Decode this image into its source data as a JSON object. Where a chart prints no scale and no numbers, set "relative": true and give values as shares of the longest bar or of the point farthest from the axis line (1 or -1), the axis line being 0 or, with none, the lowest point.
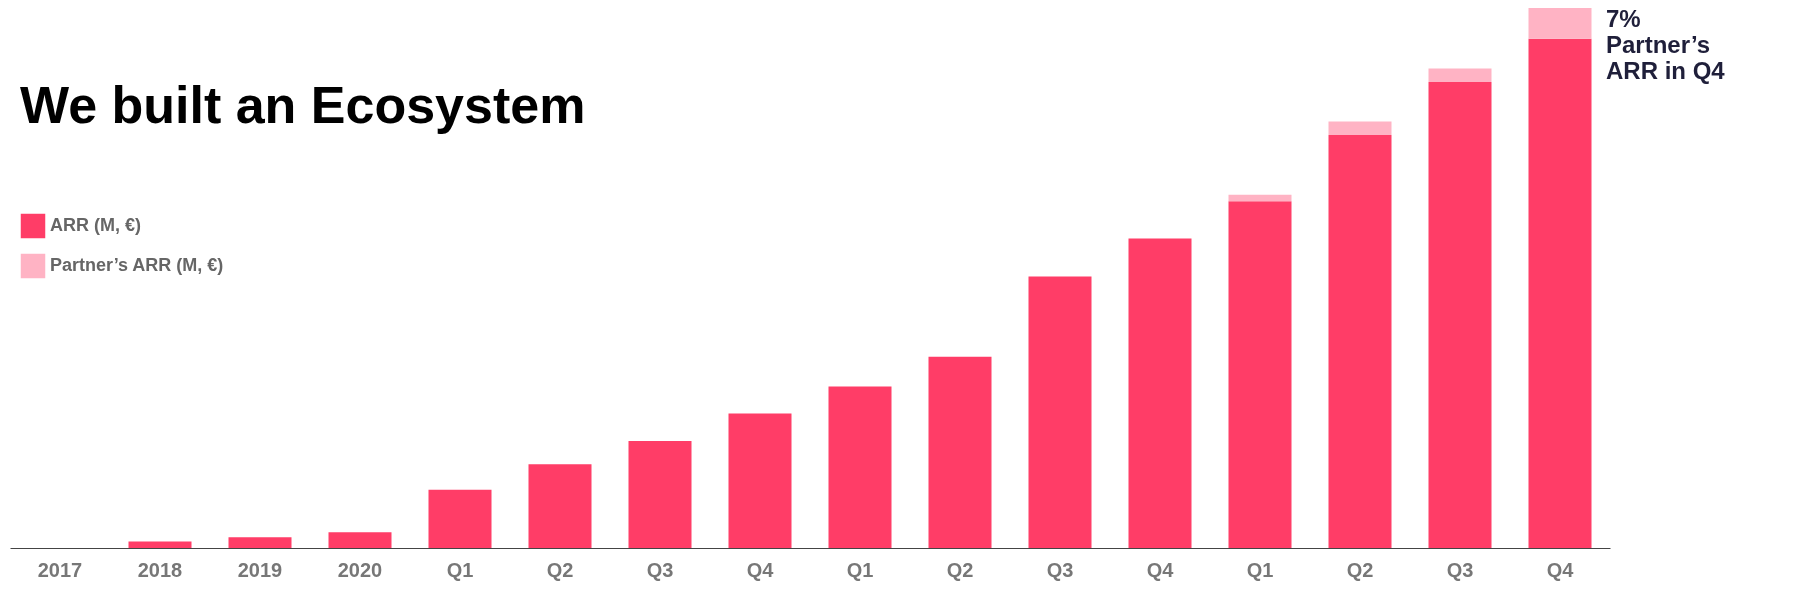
{
  "chart_data": {
    "type": "bar",
    "title": "We built an Ecosystem",
    "stacked": true,
    "relative": true,
    "legend": "left",
    "categories": [
      "2017",
      "2018",
      "2019",
      "2020",
      "Q1",
      "Q2",
      "Q3",
      "Q4",
      "Q1",
      "Q2",
      "Q3",
      "Q4",
      "Q1",
      "Q2",
      "Q3",
      "Q4"
    ],
    "series": [
      {
        "name": "ARR (M, €)",
        "color": "#ff3d67",
        "values": [
          0,
          0.012,
          0.02,
          0.029,
          0.108,
          0.155,
          0.198,
          0.249,
          0.299,
          0.354,
          0.503,
          0.573,
          0.642,
          0.765,
          0.863,
          0.943
        ]
      },
      {
        "name": "Partner’s ARR (M, €)",
        "color": "#ffb3c4",
        "values": [
          null,
          null,
          null,
          null,
          null,
          null,
          null,
          null,
          null,
          null,
          null,
          null,
          0.012,
          0.025,
          0.025,
          0.057
        ]
      }
    ],
    "annotations": [
      "7% Partner’s ARR in Q4"
    ]
  }
}
